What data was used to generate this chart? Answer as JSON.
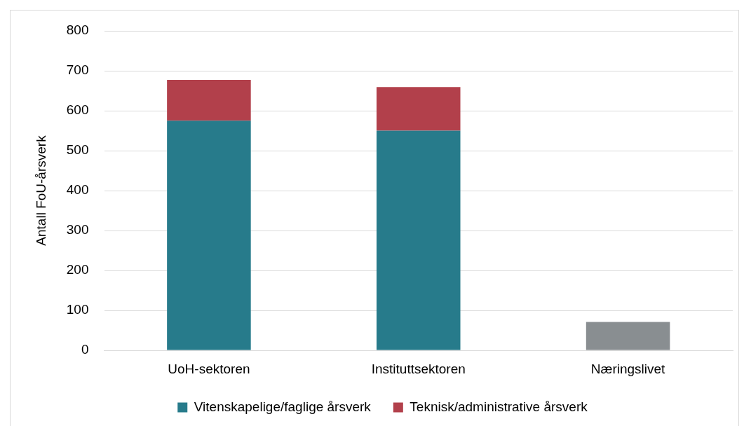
{
  "chart_data": {
    "type": "bar",
    "ylabel": "Antall FoU-årsverk",
    "categories": [
      "UoH-sektoren",
      "Instituttsektoren",
      "Næringslivet"
    ],
    "series": [
      {
        "name": "Vitenskapelige/faglige årsverk",
        "color": "#277b8b",
        "values": [
          575,
          550,
          null
        ]
      },
      {
        "name": "Teknisk/administrative årsverk",
        "color": "#b2404b",
        "values": [
          102,
          109,
          null
        ]
      },
      {
        "color": "#898e91",
        "values": [
          null,
          null,
          71
        ]
      }
    ],
    "stacked": true,
    "ylim": [
      0,
      800
    ],
    "yticks": [
      0,
      100,
      200,
      300,
      400,
      500,
      600,
      700,
      800
    ],
    "grid": "y",
    "legend": "bottom"
  }
}
